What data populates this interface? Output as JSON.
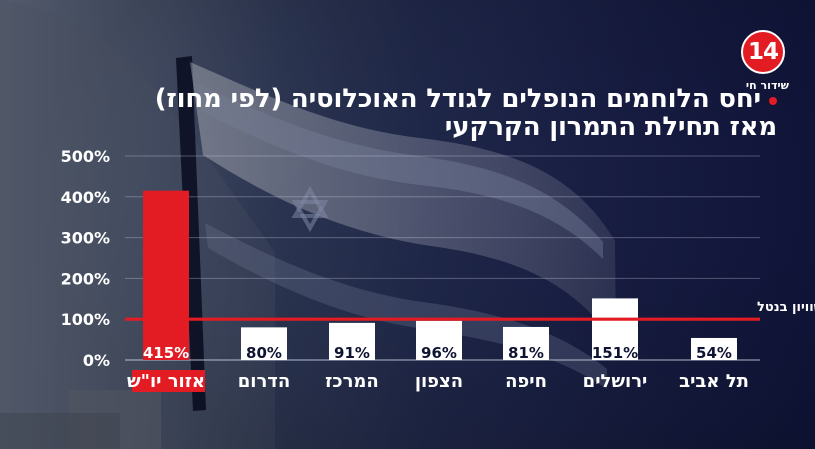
{
  "branding": {
    "logo_text": "14",
    "live_label": "שידור חי",
    "accent_color": "#e31b23"
  },
  "header": {
    "line1": "יחס הלוחמים הנופלים לגודל האוכלוסיה (לפי מחוז)",
    "line2": "מאז תחילת התמרון הקרקעי"
  },
  "chart_data": {
    "type": "bar",
    "categories": [
      "אזור יו\"ש",
      "הדרום",
      "המרכז",
      "הצפון",
      "חיפה",
      "ירושלים",
      "תל אביב"
    ],
    "values": [
      415,
      80,
      91,
      96,
      81,
      151,
      54
    ],
    "value_labels": [
      "415%",
      "80%",
      "91%",
      "96%",
      "81%",
      "151%",
      "54%"
    ],
    "y_ticks": [
      "0%",
      "100%",
      "200%",
      "300%",
      "400%",
      "500%"
    ],
    "ylim": [
      0,
      500
    ],
    "reference_line": {
      "value": 100,
      "label": "קו השוויון בנטל",
      "color": "#e31b23"
    },
    "highlight_index": 0,
    "highlight_color": "#e31b23",
    "default_bar_color": "#ffffff",
    "grid": true,
    "legend": "none"
  }
}
